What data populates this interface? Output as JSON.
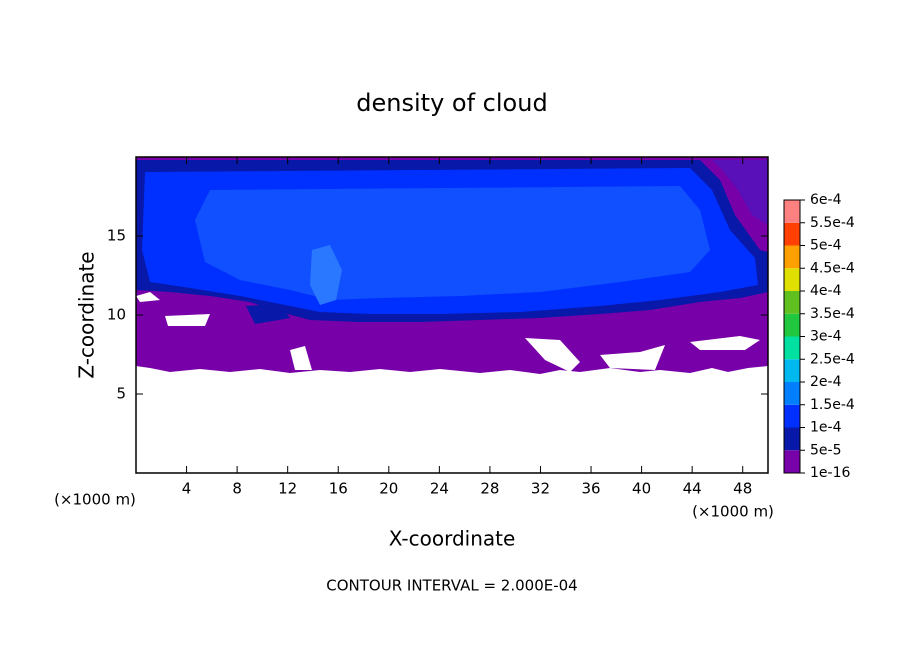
{
  "chart_data": {
    "type": "contour",
    "title": "density of cloud",
    "x_label": "X-coordinate",
    "y_label": "Z-coordinate",
    "x_unit": "(×1000 m)",
    "y_unit": "(×1000 m)",
    "note": "CONTOUR INTERVAL = 2.000E-04",
    "xlim": [
      0,
      50
    ],
    "xticks": [
      4,
      8,
      12,
      16,
      20,
      24,
      28,
      32,
      36,
      40,
      44,
      48
    ],
    "ylim": [
      0,
      20
    ],
    "yticks": [
      5,
      10,
      15
    ],
    "colorbar": {
      "levels": [
        {
          "value": 1e-16,
          "label": "1e-16"
        },
        {
          "value": 5e-05,
          "label": "5e-5"
        },
        {
          "value": 0.0001,
          "label": "1e-4"
        },
        {
          "value": 0.00015,
          "label": "1.5e-4"
        },
        {
          "value": 0.0002,
          "label": "2e-4"
        },
        {
          "value": 0.00025,
          "label": "2.5e-4"
        },
        {
          "value": 0.0003,
          "label": "3e-4"
        },
        {
          "value": 0.00035,
          "label": "3.5e-4"
        },
        {
          "value": 0.0004,
          "label": "4e-4"
        },
        {
          "value": 0.00045,
          "label": "4.5e-4"
        },
        {
          "value": 0.0005,
          "label": "5e-4"
        },
        {
          "value": 0.00055,
          "label": "5.5e-4"
        },
        {
          "value": 0.0006,
          "label": "6e-4"
        }
      ],
      "colors": [
        "#7800a8",
        "#0818a8",
        "#0030ff",
        "#0080ff",
        "#00b8f0",
        "#00e0a0",
        "#20c840",
        "#60c020",
        "#e0e000",
        "#ffa000",
        "#ff4000",
        "#ff8080"
      ]
    }
  }
}
